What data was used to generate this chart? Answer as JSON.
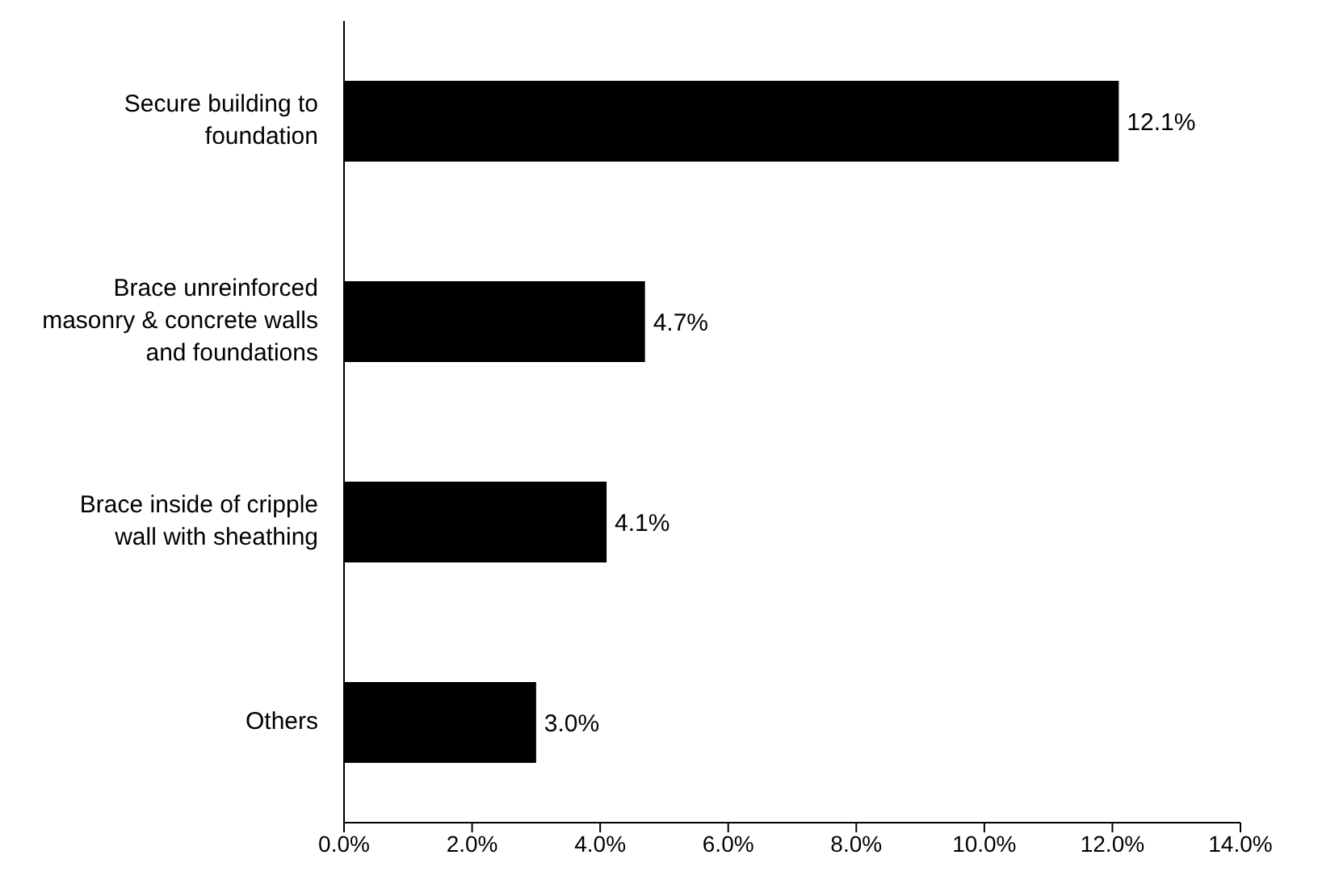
{
  "chart_data": {
    "type": "bar",
    "orientation": "horizontal",
    "categories": [
      "Secure building to foundation",
      "Brace unreinforced masonry & concrete walls and foundations",
      "Brace inside of cripple wall with sheathing",
      "Others"
    ],
    "values": [
      12.1,
      4.7,
      4.1,
      3.0
    ],
    "value_labels": [
      "12.1%",
      "4.7%",
      "4.1%",
      "3.0%"
    ],
    "color": "#000000",
    "xlim": [
      0,
      14
    ],
    "xticks": [
      {
        "value": 0,
        "label": "0.0%"
      },
      {
        "value": 2,
        "label": "2.0%"
      },
      {
        "value": 4,
        "label": "4.0%"
      },
      {
        "value": 6,
        "label": "6.0%"
      },
      {
        "value": 8,
        "label": "8.0%"
      },
      {
        "value": 10,
        "label": "10.0%"
      },
      {
        "value": 12,
        "label": "12.0%"
      },
      {
        "value": 14,
        "label": "14.0%"
      }
    ],
    "grid": false,
    "legend": false
  }
}
